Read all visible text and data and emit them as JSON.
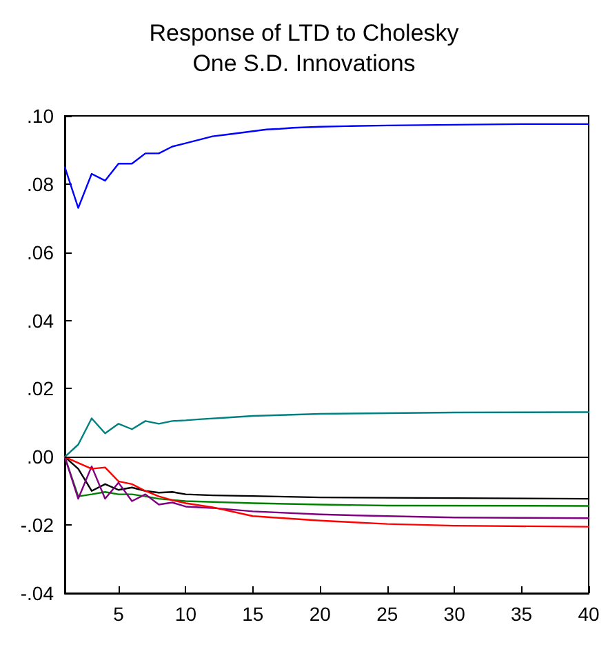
{
  "chart_data": {
    "type": "line",
    "title": "Response of LTD to Cholesky\nOne S.D. Innovations",
    "xlim": [
      1,
      40
    ],
    "xticks": [
      5,
      10,
      15,
      20,
      25,
      30,
      35,
      40
    ],
    "ylim": [
      -0.04,
      0.1
    ],
    "yticks": [
      {
        "value": -0.04,
        "label": "-.04"
      },
      {
        "value": -0.02,
        "label": "-.02"
      },
      {
        "value": 0,
        "label": ".00"
      },
      {
        "value": 0.02,
        "label": ".02"
      },
      {
        "value": 0.04,
        "label": ".04"
      },
      {
        "value": 0.06,
        "label": ".06"
      },
      {
        "value": 0.08,
        "label": ".08"
      },
      {
        "value": 0.1,
        "label": ".10"
      }
    ],
    "grid": false,
    "marker": "none",
    "line_style": "solid",
    "ref_lines": [
      {
        "axis": "y",
        "value": 0,
        "color": "#000000"
      }
    ],
    "series": [
      {
        "color": "#0000ff",
        "x": [
          1,
          2,
          3,
          4,
          5,
          6,
          7,
          8,
          9,
          10,
          11,
          12,
          13,
          14,
          15,
          16,
          17,
          18,
          20,
          22,
          25,
          30,
          35,
          40
        ],
        "values": [
          0.085,
          0.073,
          0.083,
          0.081,
          0.086,
          0.086,
          0.089,
          0.089,
          0.091,
          0.092,
          0.093,
          0.094,
          0.0945,
          0.095,
          0.0955,
          0.096,
          0.0962,
          0.0965,
          0.0968,
          0.097,
          0.0972,
          0.0974,
          0.0976,
          0.0976
        ]
      },
      {
        "color": "#008080",
        "x": [
          1,
          2,
          3,
          4,
          5,
          6,
          7,
          8,
          9,
          10,
          11,
          13,
          15,
          20,
          25,
          30,
          40
        ],
        "values": [
          0,
          0.0036,
          0.0113,
          0.0069,
          0.0097,
          0.0081,
          0.0105,
          0.0097,
          0.0105,
          0.0107,
          0.011,
          0.0115,
          0.012,
          0.0126,
          0.0128,
          0.013,
          0.0131
        ]
      },
      {
        "color": "#000000",
        "x": [
          1,
          2,
          3,
          4,
          5,
          6,
          7,
          8,
          9,
          10,
          12,
          15,
          20,
          30,
          40
        ],
        "values": [
          0,
          -0.0035,
          -0.01,
          -0.008,
          -0.0097,
          -0.009,
          -0.01,
          -0.0105,
          -0.0103,
          -0.011,
          -0.0113,
          -0.0115,
          -0.0119,
          -0.0121,
          -0.0123
        ]
      },
      {
        "color": "#008000",
        "x": [
          1,
          2,
          3,
          4,
          5,
          6,
          7,
          8,
          10,
          15,
          20,
          25,
          40
        ],
        "values": [
          0,
          -0.0116,
          -0.011,
          -0.0103,
          -0.011,
          -0.011,
          -0.0116,
          -0.0123,
          -0.013,
          -0.0136,
          -0.014,
          -0.0143,
          -0.0144
        ]
      },
      {
        "color": "#800080",
        "x": [
          1,
          2,
          3,
          4,
          5,
          6,
          7,
          8,
          9,
          10,
          12,
          15,
          20,
          25,
          30,
          35,
          40
        ],
        "values": [
          0,
          -0.0123,
          -0.0028,
          -0.0123,
          -0.0076,
          -0.013,
          -0.011,
          -0.014,
          -0.0134,
          -0.0146,
          -0.015,
          -0.016,
          -0.0169,
          -0.0174,
          -0.0178,
          -0.0179,
          -0.018
        ]
      },
      {
        "color": "#ff0000",
        "x": [
          1,
          2,
          3,
          4,
          5,
          6,
          7,
          8,
          9,
          10,
          12,
          15,
          20,
          25,
          30,
          40
        ],
        "values": [
          0,
          -0.0018,
          -0.0035,
          -0.0031,
          -0.0072,
          -0.008,
          -0.01,
          -0.0116,
          -0.0127,
          -0.0136,
          -0.0148,
          -0.0174,
          -0.0187,
          -0.0197,
          -0.0202,
          -0.0205
        ]
      }
    ]
  }
}
